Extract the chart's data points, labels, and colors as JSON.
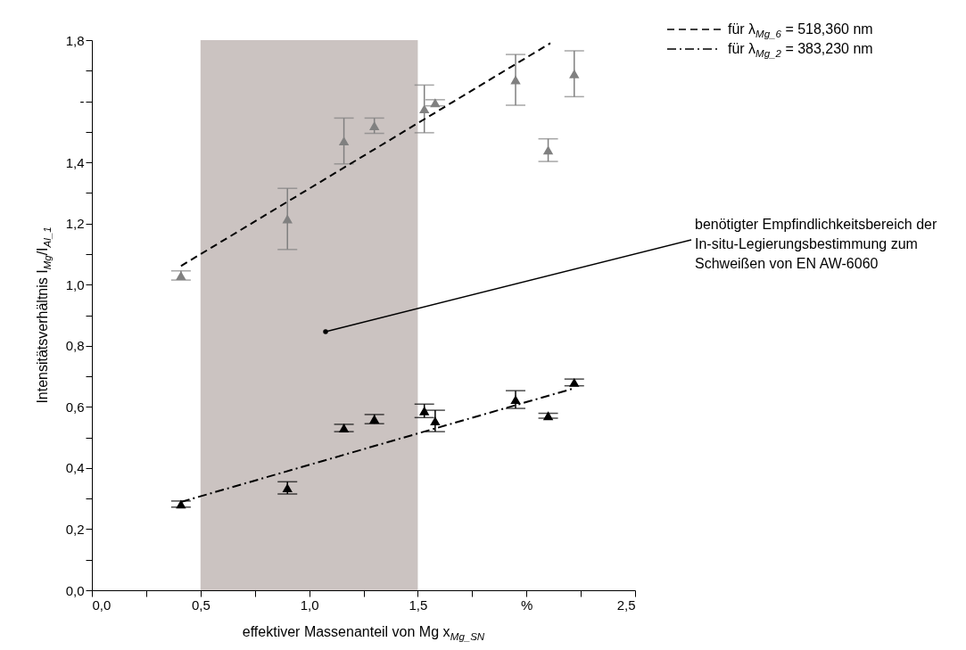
{
  "chart_data": {
    "type": "scatter",
    "xlabel": "effektiver Massenanteil von Mg x$_{Mg_SN}$",
    "ylabel": "Intensitätsverhältnis I$_{Mg}$/I$_{Al_1}$",
    "xlim": [
      0,
      2.5
    ],
    "ylim": [
      0,
      1.8
    ],
    "xticks": [
      {
        "value": 0,
        "label": "0,0"
      },
      {
        "value": 0.25,
        "label": null
      },
      {
        "value": 0.5,
        "label": "0,5"
      },
      {
        "value": 0.75,
        "label": null
      },
      {
        "value": 1,
        "label": "1,0"
      },
      {
        "value": 1.25,
        "label": null
      },
      {
        "value": 1.5,
        "label": "1,5"
      },
      {
        "value": 1.75,
        "label": null
      },
      {
        "value": 2,
        "label": "%"
      },
      {
        "value": 2.25,
        "label": null
      },
      {
        "value": 2.5,
        "label": "2,5"
      }
    ],
    "yticks": [
      {
        "value": 0,
        "label": "0,0"
      },
      {
        "value": 0.1,
        "label": null
      },
      {
        "value": 0.2,
        "label": "0,2"
      },
      {
        "value": 0.3,
        "label": null
      },
      {
        "value": 0.4,
        "label": "0,4"
      },
      {
        "value": 0.5,
        "label": null
      },
      {
        "value": 0.6,
        "label": "0,6"
      },
      {
        "value": 0.7,
        "label": null
      },
      {
        "value": 0.8,
        "label": "0,8"
      },
      {
        "value": 0.9,
        "label": null
      },
      {
        "value": 1,
        "label": "1,0"
      },
      {
        "value": 1.1,
        "label": null
      },
      {
        "value": 1.2,
        "label": "1,2"
      },
      {
        "value": 1.3,
        "label": null
      },
      {
        "value": 1.4,
        "label": "1,4"
      },
      {
        "value": 1.5,
        "label": null
      },
      {
        "value": 1.6,
        "label": "-"
      },
      {
        "value": 1.7,
        "label": null
      },
      {
        "value": 1.8,
        "label": "1,8"
      }
    ],
    "grid": false,
    "legend": "top right",
    "marker": "triangle",
    "series": [
      {
        "color": "#808080",
        "x": [
          0.41,
          0.9,
          1.16,
          1.3,
          1.53,
          1.58,
          1.95,
          2.1,
          2.22
        ],
        "values": [
          1.03,
          1.215,
          1.47,
          1.52,
          1.575,
          1.595,
          1.67,
          1.44,
          1.69
        ],
        "errors": [
          0.015,
          0.1,
          0.075,
          0.025,
          0.078,
          0.01,
          0.083,
          0.037,
          0.075
        ]
      },
      {
        "color": "#000000",
        "x": [
          0.41,
          0.9,
          1.16,
          1.3,
          1.53,
          1.58,
          1.95,
          2.1,
          2.22
        ],
        "values": [
          0.282,
          0.335,
          0.531,
          0.56,
          0.587,
          0.554,
          0.624,
          0.571,
          0.68
        ],
        "errors": [
          0.01,
          0.02,
          0.012,
          0.015,
          0.022,
          0.035,
          0.029,
          0.008,
          0.011
        ]
      },
      {
        "type": "line",
        "name": "für λ$_{Mg_6}$ = 518,360 nm",
        "color": "#000000",
        "line_style": "dashed",
        "marker": "none",
        "x": [
          0.41,
          2.11
        ],
        "values": [
          1.061,
          1.79
        ]
      },
      {
        "type": "line",
        "name": "für λ$_{Mg_2}$ = 383,230 nm",
        "color": "#000000",
        "line_style": "dashdot",
        "marker": "none",
        "x": [
          0.41,
          2.22
        ],
        "values": [
          0.289,
          0.661
        ]
      }
    ],
    "bands": [
      {
        "axis": "x",
        "from": 0.5,
        "to": 1.5,
        "color": "#cbc3c1"
      }
    ],
    "annotations": [
      "benötigter Empfindlichkeitsbereich der\nIn-situ-Legierungsbestimmung zum\nSchweißen von EN AW-6060"
    ]
  }
}
